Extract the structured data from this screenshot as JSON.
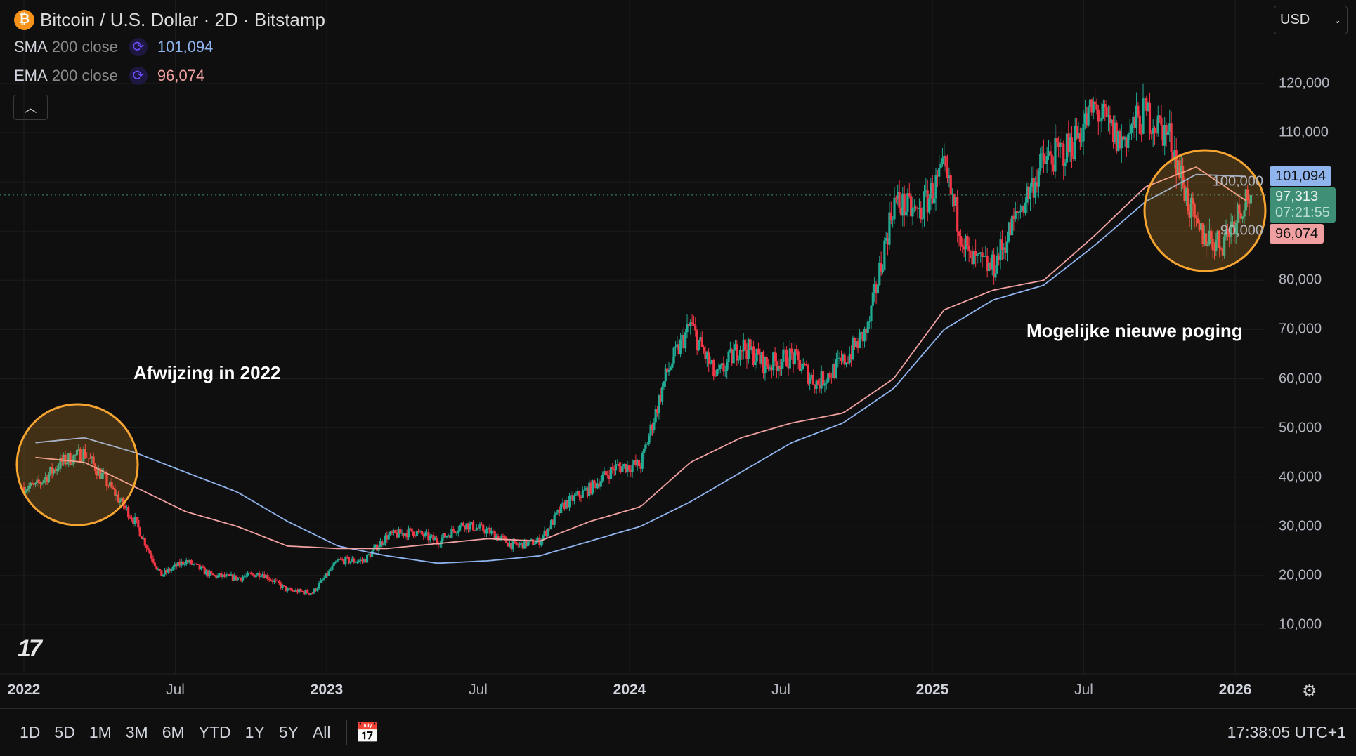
{
  "header": {
    "symbol_icon": "bitcoin-icon",
    "title": "Bitcoin / U.S. Dollar · 2D · Bitstamp",
    "currency": "USD"
  },
  "indicators": [
    {
      "name": "SMA",
      "params": "200 close",
      "value": "101,094",
      "color": "#8fb4ee"
    },
    {
      "name": "EMA",
      "params": "200 close",
      "value": "96,074",
      "color": "#f0a0a0"
    }
  ],
  "price_tags": {
    "sma": "101,094",
    "last": "97,313",
    "countdown": "07:21:55",
    "ema": "96,074"
  },
  "annotations": {
    "left": "Afwijzing in 2022",
    "right": "Mogelijke nieuwe poging"
  },
  "range_buttons": [
    "1D",
    "5D",
    "1M",
    "3M",
    "6M",
    "YTD",
    "1Y",
    "5Y",
    "All"
  ],
  "clock": "17:38:05 UTC+1",
  "colors": {
    "up": "#22ab94",
    "down": "#f23645",
    "sma": "#8fb4ee",
    "ema": "#f0a0a0",
    "circle": "#f7a531"
  },
  "chart_data": {
    "type": "candlestick",
    "interval": "2D",
    "yaxis_ticks": [
      "10,000",
      "20,000",
      "30,000",
      "40,000",
      "50,000",
      "60,000",
      "70,000",
      "80,000",
      "90,000",
      "100,000",
      "110,000",
      "120,000"
    ],
    "ylim": [
      0,
      130000
    ],
    "xaxis_ticks": [
      {
        "label": "2022",
        "bold": true
      },
      {
        "label": "Jul"
      },
      {
        "label": "2023",
        "bold": true
      },
      {
        "label": "Jul"
      },
      {
        "label": "2024",
        "bold": true
      },
      {
        "label": "Jul"
      },
      {
        "label": "2025",
        "bold": true
      },
      {
        "label": "Jul"
      },
      {
        "label": "2026",
        "bold": true
      }
    ],
    "last_price": 97313,
    "close_monthly": [
      [
        "2022-01",
        38000
      ],
      [
        "2022-02",
        43000
      ],
      [
        "2022-03",
        45000
      ],
      [
        "2022-04",
        38000
      ],
      [
        "2022-05",
        31000
      ],
      [
        "2022-06",
        20000
      ],
      [
        "2022-07",
        23000
      ],
      [
        "2022-08",
        20000
      ],
      [
        "2022-09",
        19500
      ],
      [
        "2022-10",
        20500
      ],
      [
        "2022-11",
        17000
      ],
      [
        "2022-12",
        16500
      ],
      [
        "2023-01",
        23000
      ],
      [
        "2023-02",
        23000
      ],
      [
        "2023-03",
        28000
      ],
      [
        "2023-04",
        29000
      ],
      [
        "2023-05",
        27000
      ],
      [
        "2023-06",
        30500
      ],
      [
        "2023-07",
        29000
      ],
      [
        "2023-08",
        26000
      ],
      [
        "2023-09",
        27000
      ],
      [
        "2023-10",
        34500
      ],
      [
        "2023-11",
        37700
      ],
      [
        "2023-12",
        42000
      ],
      [
        "2024-01",
        42500
      ],
      [
        "2024-02",
        61000
      ],
      [
        "2024-03",
        71000
      ],
      [
        "2024-04",
        60000
      ],
      [
        "2024-05",
        67000
      ],
      [
        "2024-06",
        62700
      ],
      [
        "2024-07",
        64600
      ],
      [
        "2024-08",
        59000
      ],
      [
        "2024-09",
        63300
      ],
      [
        "2024-10",
        70000
      ],
      [
        "2024-11",
        96000
      ],
      [
        "2024-12",
        93400
      ],
      [
        "2025-01",
        102000
      ],
      [
        "2025-02",
        84000
      ],
      [
        "2025-03",
        82500
      ],
      [
        "2025-04",
        94000
      ],
      [
        "2025-05",
        104000
      ],
      [
        "2025-06",
        107000
      ],
      [
        "2025-07",
        115000
      ],
      [
        "2025-08",
        108000
      ],
      [
        "2025-09",
        114000
      ],
      [
        "2025-10",
        109000
      ],
      [
        "2025-11",
        90000
      ],
      [
        "2025-12",
        87500
      ],
      [
        "2026-01",
        97313
      ]
    ],
    "sma_200": [
      [
        "2022-01",
        47000
      ],
      [
        "2022-03",
        48000
      ],
      [
        "2022-05",
        45000
      ],
      [
        "2022-07",
        41000
      ],
      [
        "2022-09",
        37000
      ],
      [
        "2022-11",
        31000
      ],
      [
        "2023-01",
        26000
      ],
      [
        "2023-03",
        24000
      ],
      [
        "2023-05",
        22500
      ],
      [
        "2023-07",
        23000
      ],
      [
        "2023-09",
        24000
      ],
      [
        "2023-11",
        27000
      ],
      [
        "2024-01",
        30000
      ],
      [
        "2024-03",
        35000
      ],
      [
        "2024-05",
        41000
      ],
      [
        "2024-07",
        47000
      ],
      [
        "2024-09",
        51000
      ],
      [
        "2024-11",
        58000
      ],
      [
        "2025-01",
        70000
      ],
      [
        "2025-03",
        76000
      ],
      [
        "2025-05",
        79000
      ],
      [
        "2025-07",
        87000
      ],
      [
        "2025-09",
        96000
      ],
      [
        "2025-11",
        101500
      ],
      [
        "2026-01",
        101094
      ]
    ],
    "ema_200": [
      [
        "2022-01",
        44000
      ],
      [
        "2022-03",
        43000
      ],
      [
        "2022-05",
        38000
      ],
      [
        "2022-07",
        33000
      ],
      [
        "2022-09",
        30000
      ],
      [
        "2022-11",
        26000
      ],
      [
        "2023-01",
        25500
      ],
      [
        "2023-03",
        25500
      ],
      [
        "2023-05",
        26500
      ],
      [
        "2023-07",
        27500
      ],
      [
        "2023-09",
        27000
      ],
      [
        "2023-11",
        31000
      ],
      [
        "2024-01",
        34000
      ],
      [
        "2024-03",
        43000
      ],
      [
        "2024-05",
        48000
      ],
      [
        "2024-07",
        51000
      ],
      [
        "2024-09",
        53000
      ],
      [
        "2024-11",
        60000
      ],
      [
        "2025-01",
        74000
      ],
      [
        "2025-03",
        78000
      ],
      [
        "2025-05",
        80000
      ],
      [
        "2025-07",
        89000
      ],
      [
        "2025-09",
        99000
      ],
      [
        "2025-11",
        103000
      ],
      [
        "2026-01",
        96074
      ]
    ]
  }
}
